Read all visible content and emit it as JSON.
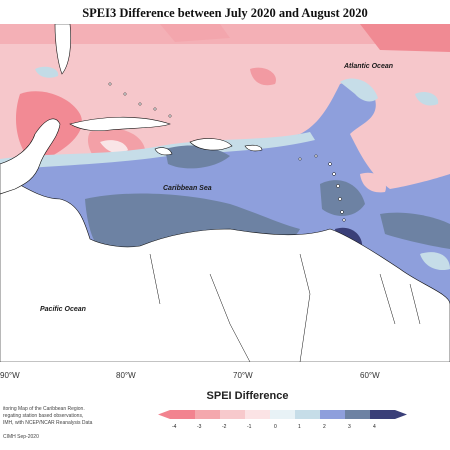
{
  "title": "SPEI3 Difference between July 2020 and August 2020",
  "labels": {
    "atlantic": "Atlantic Ocean",
    "caribbean": "Caribbean Sea",
    "pacific": "Pacific Ocean"
  },
  "longitude_ticks": [
    "90°W",
    "80°W",
    "70°W",
    "60°W"
  ],
  "legend": {
    "title": "SPEI Difference",
    "tick_labels": [
      "-4",
      "-3",
      "-2",
      "-1",
      "0",
      "1",
      "2",
      "3",
      "4"
    ],
    "colors": [
      "#f2838f",
      "#f4a8ad",
      "#f7c9cc",
      "#fbe3e5",
      "#e8f2f6",
      "#c6dde8",
      "#8e9fdc",
      "#6d82a3",
      "#3a3f78"
    ]
  },
  "credits": {
    "line1": "itoring Map of the Caribbean Region.",
    "line2": "regating station based observations,",
    "line3": "IMH, with NCEP/NCAR Reanalysis Data",
    "line4": "CIMH Sep-2020"
  }
}
